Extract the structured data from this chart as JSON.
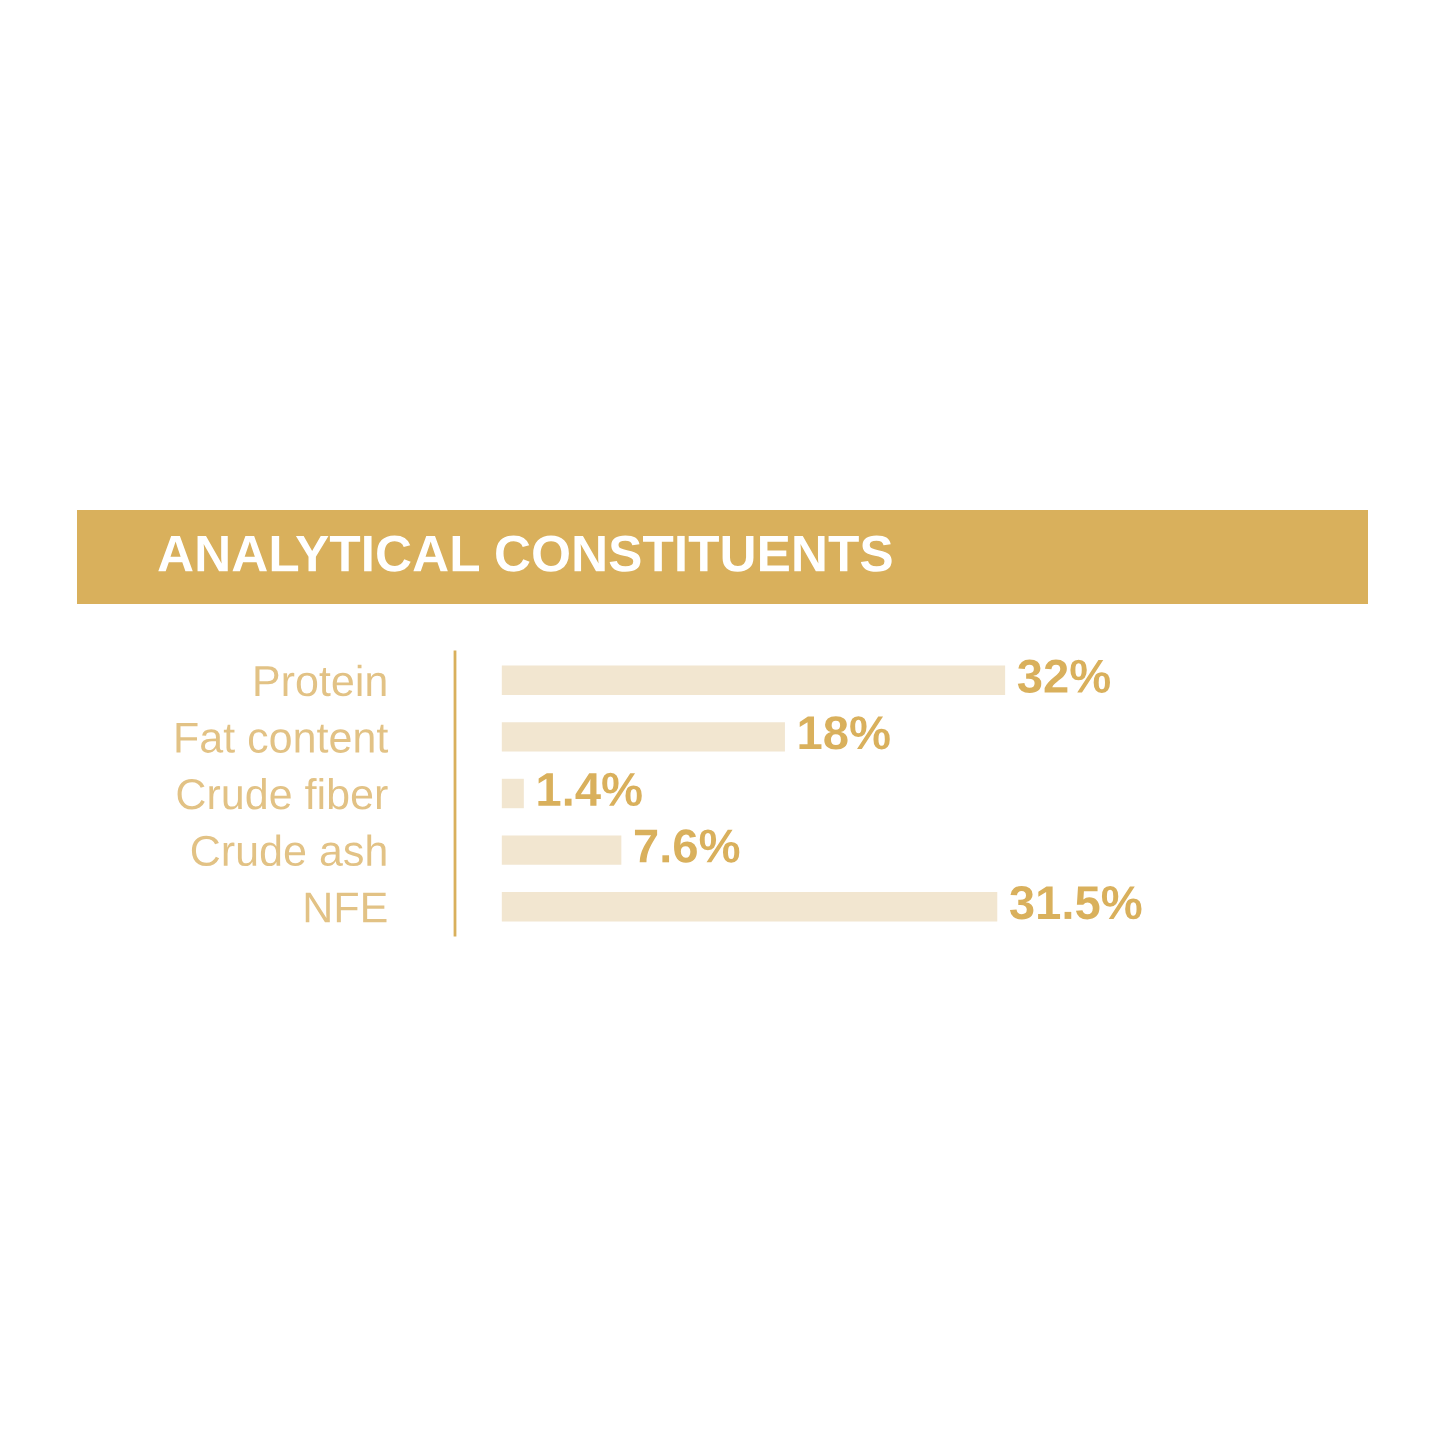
{
  "chart_data": {
    "type": "bar",
    "orientation": "horizontal",
    "title": "ANALYTICAL CONSTITUENTS",
    "categories": [
      "Protein",
      "Fat content",
      "Crude fiber",
      "Crude ash",
      "NFE"
    ],
    "values": [
      32,
      18,
      1.4,
      7.6,
      31.5
    ],
    "value_labels": [
      "32%",
      "18%",
      "1.4%",
      "7.6%",
      "31.5%"
    ],
    "color": "#f2e6d0",
    "grid": false,
    "legend": false,
    "tick_labels": "y"
  }
}
